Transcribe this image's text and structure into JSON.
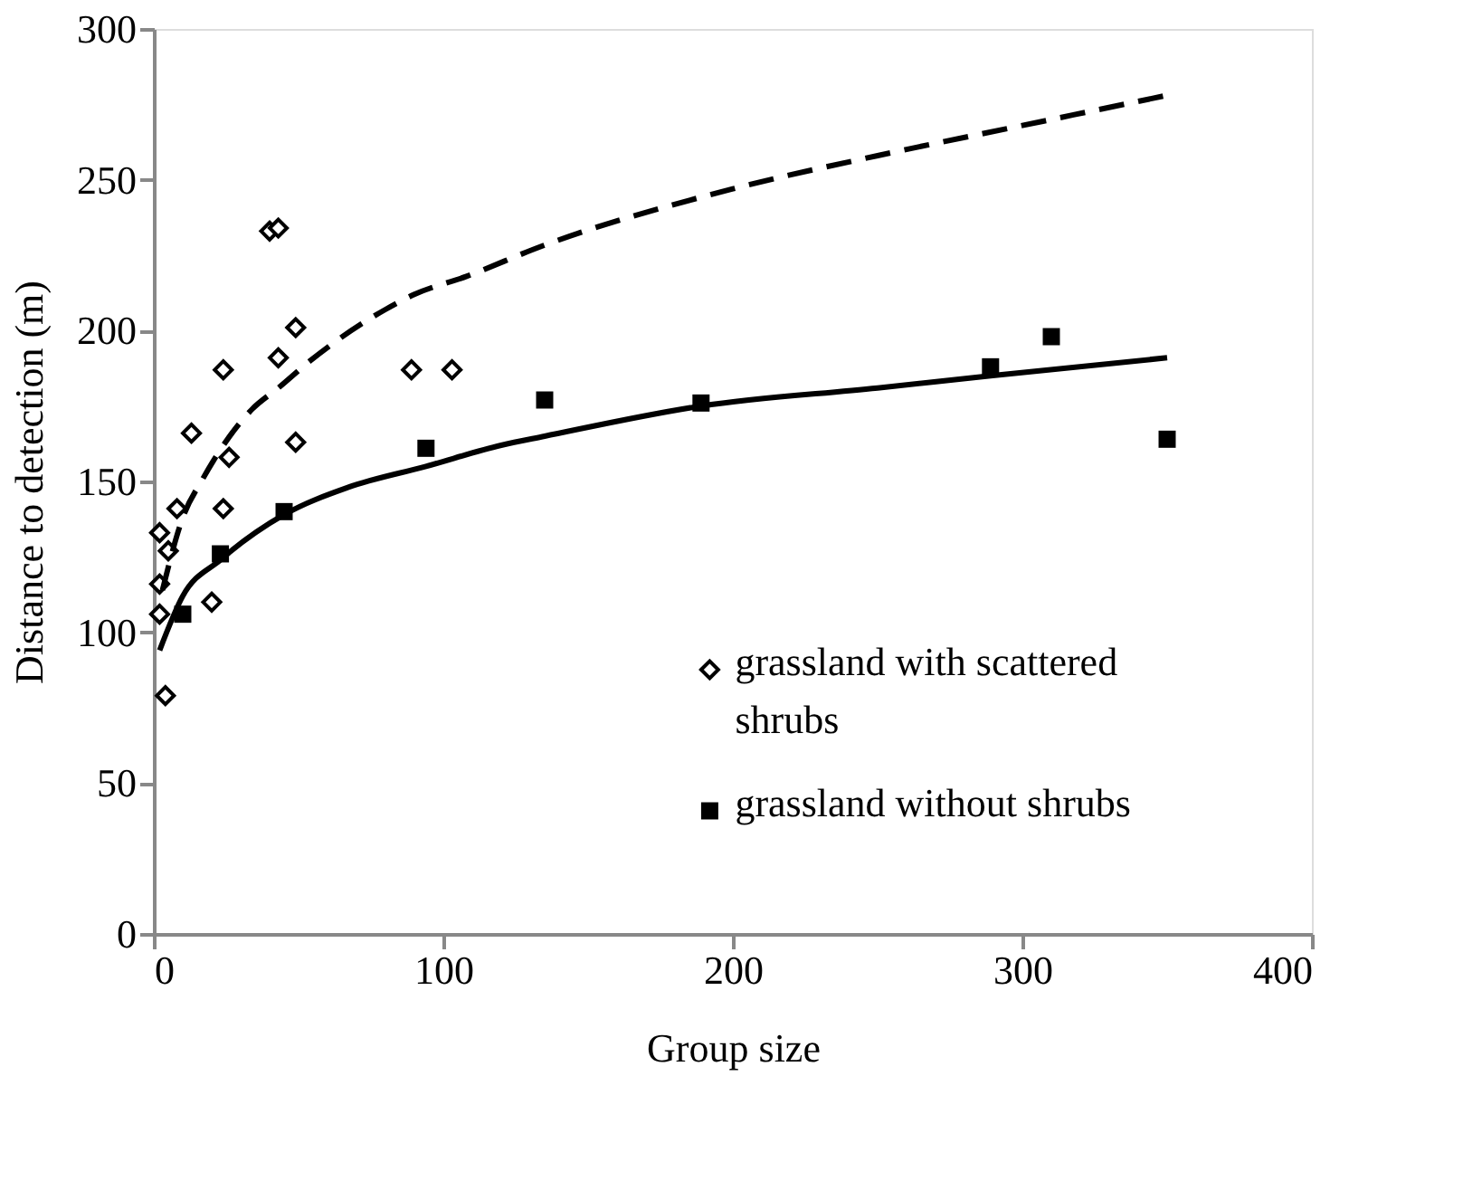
{
  "chart_data": {
    "type": "scatter",
    "xlabel": "Group size",
    "ylabel": "Distance to detection (m)",
    "xlim": [
      0,
      400
    ],
    "xticks": [
      0,
      100,
      200,
      300,
      400
    ],
    "ylim": [
      0,
      300
    ],
    "yticks": [
      0,
      50,
      100,
      150,
      200,
      250,
      300
    ],
    "grid": false,
    "legend": "bottom right",
    "series": [
      {
        "name": "grassland with scattered shrubs",
        "type": "scatter",
        "marker": "diamond",
        "color": "#000000",
        "x": [
          2,
          5,
          2,
          2,
          4,
          8,
          13,
          20,
          24,
          26,
          24,
          40,
          43,
          43,
          49,
          49,
          89,
          103
        ],
        "values": [
          133,
          127,
          116,
          106,
          79,
          141,
          166,
          110,
          187,
          158,
          141,
          233,
          234,
          191,
          201,
          163,
          187,
          187
        ]
      },
      {
        "name": "grassland without shrubs",
        "type": "scatter",
        "marker": "square",
        "color": "#000000",
        "x": [
          10,
          23,
          45,
          94,
          135,
          189,
          289,
          310,
          350
        ],
        "values": [
          106,
          126,
          140,
          161,
          177,
          176,
          188,
          198,
          164
        ]
      },
      {
        "type": "line",
        "line_style": "dashed",
        "marker": "none",
        "color": "#000000",
        "x": [
          3,
          10,
          17,
          34,
          43,
          54,
          80,
          90,
          108,
          134,
          200,
          250,
          300,
          350
        ],
        "values": [
          114,
          138,
          151,
          174,
          181,
          190,
          207,
          212,
          218,
          228,
          247,
          258,
          268,
          278
        ]
      },
      {
        "type": "line",
        "line_style": "solid",
        "marker": "none",
        "color": "#000000",
        "x": [
          2,
          10,
          23,
          45,
          67,
          94,
          120,
          135,
          189,
          250,
          289,
          350
        ],
        "values": [
          94,
          112,
          124,
          139,
          148,
          155,
          162,
          165,
          175,
          181,
          185,
          191
        ]
      }
    ]
  }
}
